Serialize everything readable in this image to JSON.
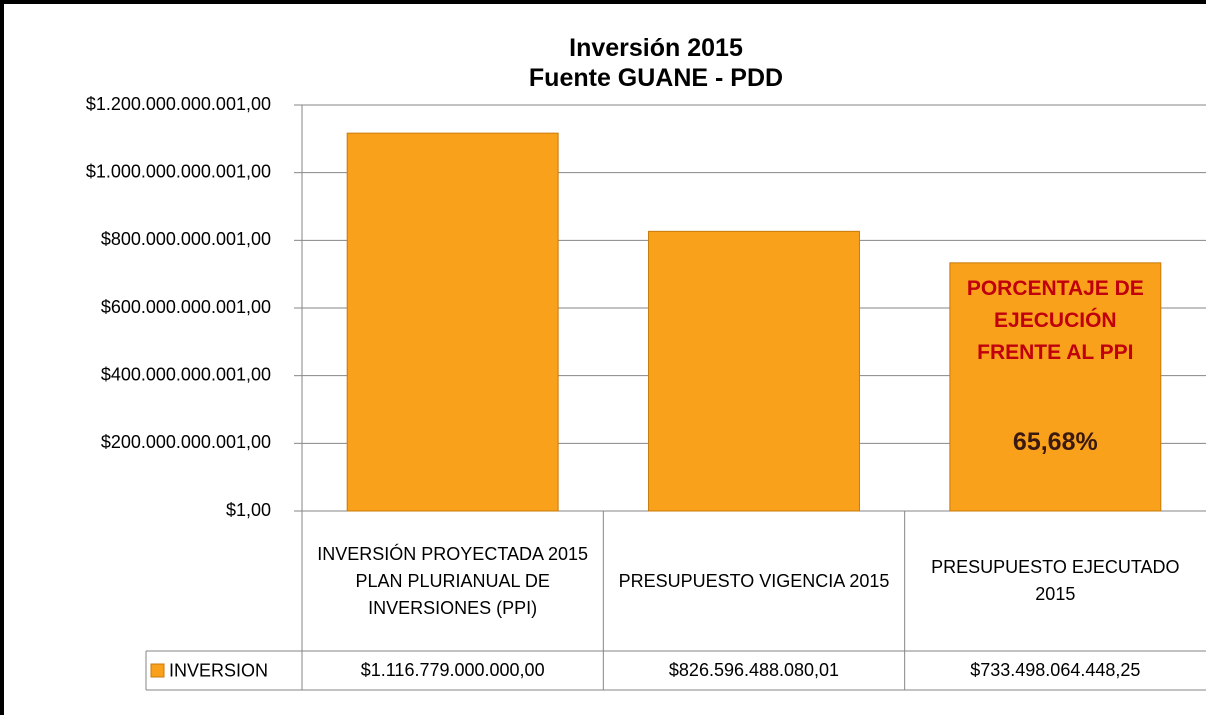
{
  "chart_data": {
    "type": "bar",
    "title": "Inversión 2015",
    "subtitle": "Fuente GUANE - PDD",
    "categories": [
      "INVERSIÓN PROYECTADA 2015 PLAN PLURIANUAL DE INVERSIONES (PPI)",
      "PRESUPUESTO VIGENCIA 2015",
      "PRESUPUESTO EJECUTADO 2015"
    ],
    "series": [
      {
        "name": "INVERSION",
        "color": "#f9a11b",
        "values": [
          1116779000000,
          826596488080.01,
          733498064448.25
        ],
        "value_labels": [
          "$1.116.779.000.000,00",
          "$826.596.488.080,01",
          "$733.498.064.448,25"
        ]
      }
    ],
    "ylim": [
      1,
      1200000000001
    ],
    "yticks": [
      {
        "value": 1,
        "label": "$1,00"
      },
      {
        "value": 200000000001,
        "label": "$200.000.000.001,00"
      },
      {
        "value": 400000000001,
        "label": "$400.000.000.001,00"
      },
      {
        "value": 600000000001,
        "label": "$600.000.000.001,00"
      },
      {
        "value": 800000000001,
        "label": "$800.000.000.001,00"
      },
      {
        "value": 1000000000001,
        "label": "$1.000.000.000.001,00"
      },
      {
        "value": 1200000000001,
        "label": "$1.200.000.000.001,00"
      }
    ],
    "grid": true,
    "annotations": [
      "PORCENTAJE DE EJECUCIÓN FRENTE AL PPI",
      "65,68%"
    ]
  }
}
